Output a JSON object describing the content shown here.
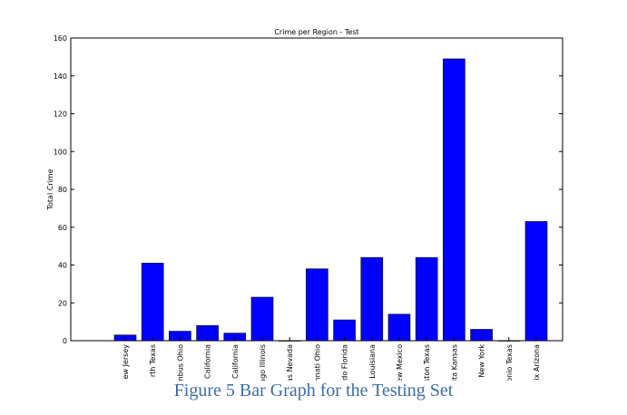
{
  "chart_data": {
    "type": "bar",
    "title": "Crime per Region - Test",
    "xlabel": "",
    "ylabel": "Total Crime",
    "ylim": [
      0,
      160
    ],
    "yticks": [
      0,
      20,
      40,
      60,
      80,
      100,
      120,
      140,
      160
    ],
    "grid": false,
    "bar_color": "#0000ff",
    "categories": [
      "ew Jersey",
      "rth Texas",
      "mbus Ohio",
      "California",
      "California",
      "ago Illinois",
      "as Nevada",
      "nnati Ohio",
      "do Florida",
      "Louisiana",
      "ew Mexico",
      "ston Texas",
      "ita Kansas",
      "New York",
      "onio Texas",
      "ix Arizona"
    ],
    "values": [
      3,
      41,
      5,
      8,
      4,
      23,
      0,
      38,
      11,
      44,
      14,
      44,
      149,
      6,
      0,
      63
    ]
  },
  "caption": "Figure 5 Bar Graph for the Testing Set"
}
